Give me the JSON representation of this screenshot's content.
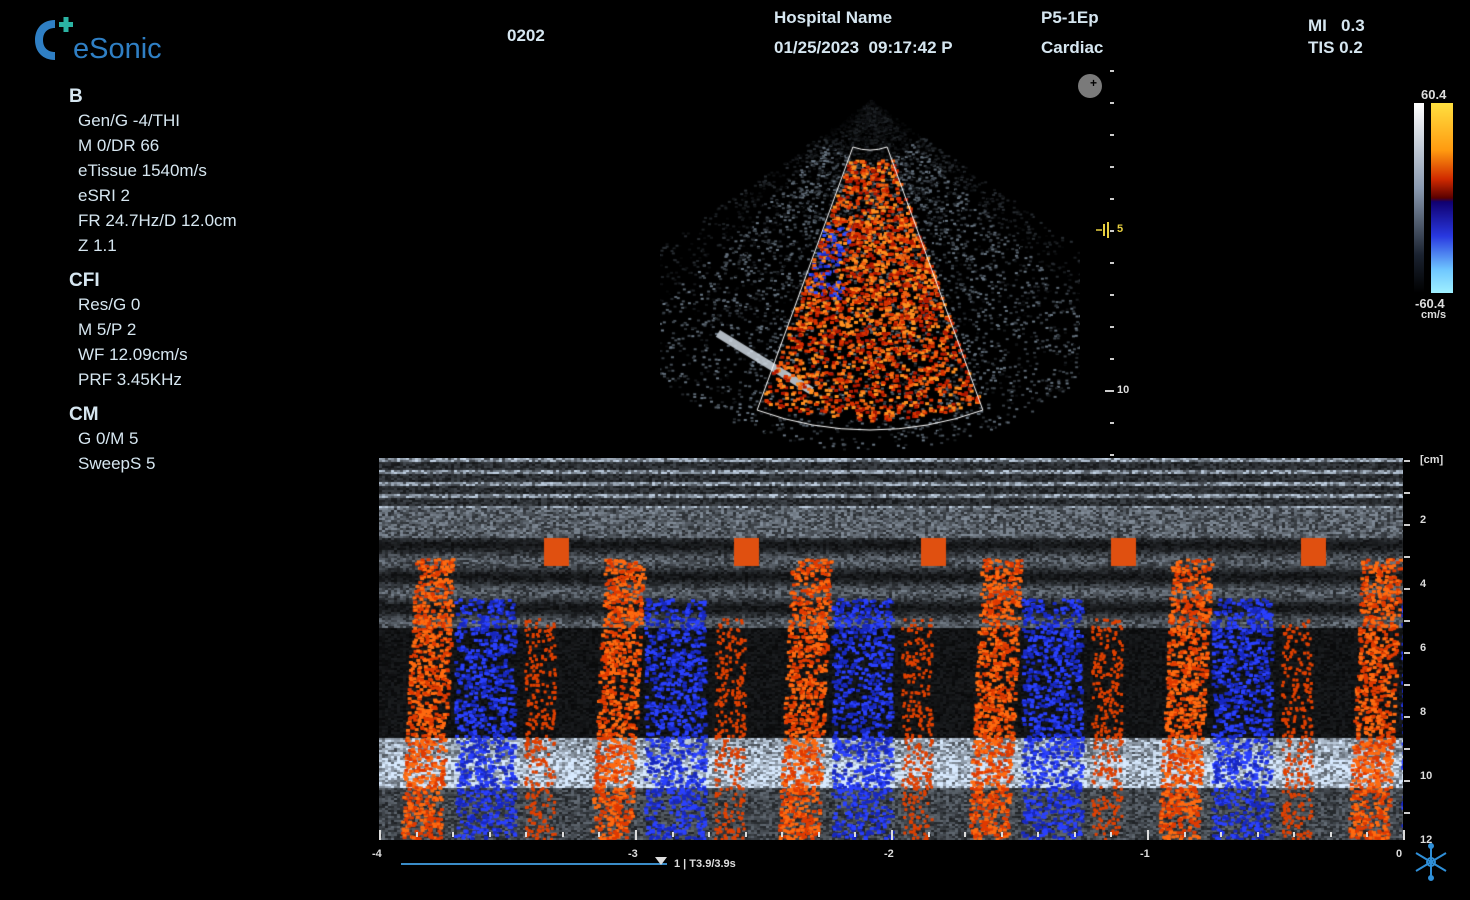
{
  "brand": {
    "logo_text": "eSonic",
    "color": "#2f7fc4",
    "accent": "#2bb3a3"
  },
  "patient_id": "0202",
  "hospital": "Hospital Name",
  "datetime": "01/25/2023  09:17:42 P",
  "probe": "P5-1Ep",
  "preset": "Cardiac",
  "mi": "MI   0.3",
  "tis": "TIS 0.2",
  "sections": [
    {
      "title": "B",
      "params": [
        "Gen/G  -4/THI",
        "M  0/DR  66",
        "eTissue  1540m/s",
        "eSRI  2",
        "FR  24.7Hz/D  12.0cm",
        "Z 1.1"
      ]
    },
    {
      "title": "CFI",
      "params": [
        "Res/G  0",
        "M  5/P  2",
        "WF  12.09cm/s",
        "PRF  3.45KHz"
      ]
    },
    {
      "title": "CM",
      "params": [
        "G  0/M  5",
        "SweepS  5"
      ]
    }
  ],
  "bmode_depth": {
    "focus_label": "5",
    "depth_label": "10"
  },
  "color_scale": {
    "max": "60.4",
    "min": "-60.4",
    "unit": "cm/s"
  },
  "mmode": {
    "depth_unit": "[cm]",
    "depth_labels": [
      "2",
      "4",
      "6",
      "8",
      "10",
      "12"
    ],
    "time_labels": [
      "-4",
      "-3",
      "-2",
      "-1",
      "0"
    ],
    "cine": {
      "label": "1 | T3.9/3.9s",
      "position": 1.0
    }
  },
  "icons": {
    "freeze": "snowflake-icon",
    "orientation": "probe-marker-icon"
  }
}
